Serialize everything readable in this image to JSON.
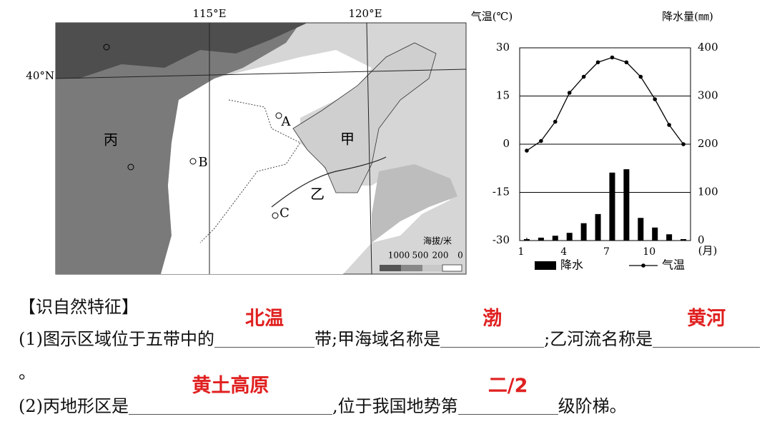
{
  "map": {
    "lon_labels": [
      "115°E",
      "120°E"
    ],
    "lat_label": "40°N",
    "regions": [
      "丙",
      "甲",
      "乙"
    ],
    "points": [
      "A",
      "B",
      "C"
    ],
    "legend_title": "海拔/米",
    "legend_levels": [
      1000,
      500,
      200,
      0
    ]
  },
  "chart_data": {
    "type": "combo",
    "y_title": "气温(℃)",
    "y2_title": "降水量(㎜)",
    "x_unit": "(月)",
    "x": [
      1,
      2,
      3,
      4,
      5,
      6,
      7,
      8,
      9,
      10,
      11,
      12
    ],
    "xlim": [
      0.5,
      12.5
    ],
    "xticks": [
      1,
      4,
      7,
      10
    ],
    "ylim": [
      -30,
      30
    ],
    "yticks": [
      -30,
      -15,
      0,
      15,
      30
    ],
    "y2lim": [
      0,
      400
    ],
    "y2ticks": [
      0,
      100,
      200,
      300,
      400
    ],
    "grid": true,
    "series": [
      {
        "name": "降水",
        "type": "bar",
        "axis": "y2",
        "color": "#000000",
        "values": [
          3,
          6,
          10,
          16,
          36,
          55,
          141,
          148,
          47,
          27,
          13,
          3
        ]
      },
      {
        "name": "气温",
        "type": "line",
        "color": "#000000",
        "values": [
          -2,
          1,
          7,
          16,
          21,
          25.5,
          27,
          25.5,
          21,
          14,
          6,
          0
        ]
      }
    ]
  },
  "questions": {
    "heading": "【识自然特征】",
    "items": [
      [
        {
          "text": "(1)图示区域位于五带中的"
        },
        {
          "answer": "北温"
        },
        {
          "text": "带;甲海域名称是"
        },
        {
          "answer": "渤"
        },
        {
          "text": ";乙河流名称是"
        },
        {
          "answer": "黄河"
        },
        {
          "text": "。"
        }
      ],
      [
        {
          "text": "(2)丙地形区是"
        },
        {
          "answer": "黄土高原"
        },
        {
          "text": ",位于我国地势第"
        },
        {
          "answer": "二/2"
        },
        {
          "text": "级阶梯。"
        }
      ]
    ]
  }
}
